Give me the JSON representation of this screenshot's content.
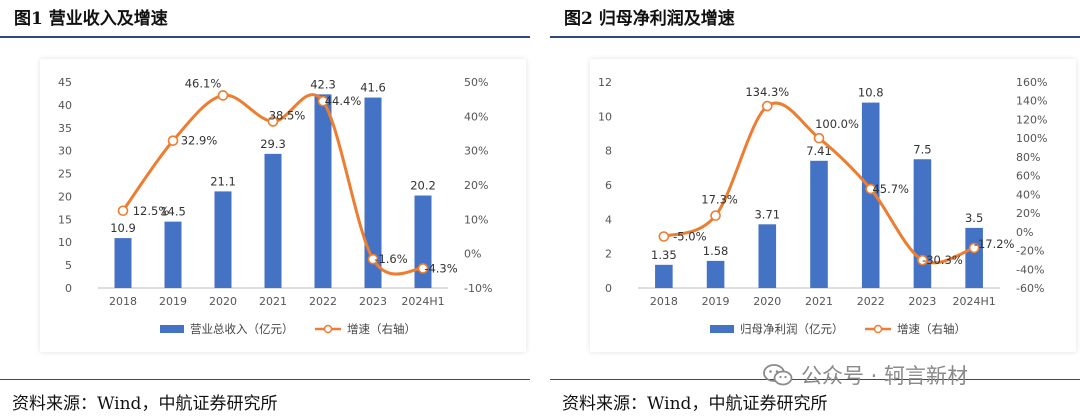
{
  "figures": [
    {
      "title": "图1 营业收入及增速",
      "source": "资料来源：Wind，中航证券研究所",
      "chart_data": {
        "type": "bar",
        "categories": [
          "2018",
          "2019",
          "2020",
          "2021",
          "2022",
          "2023",
          "2024H1"
        ],
        "series": [
          {
            "name": "营业总收入（亿元）",
            "type": "bar",
            "axis": "left",
            "values": [
              10.9,
              14.5,
              21.1,
              29.3,
              42.3,
              41.6,
              20.2
            ],
            "labels": [
              "10.9",
              "14.5",
              "21.1",
              "29.3",
              "42.3",
              "41.6",
              "20.2"
            ]
          },
          {
            "name": "增速（右轴）",
            "type": "line",
            "axis": "right",
            "values": [
              12.5,
              32.9,
              46.1,
              38.5,
              44.4,
              -1.6,
              -4.3
            ],
            "labels": [
              "12.5%",
              "32.9%",
              "46.1%",
              "38.5%",
              "44.4%",
              "-1.6%",
              "-4.3%"
            ]
          }
        ],
        "left_axis": {
          "min": 0,
          "max": 45,
          "step": 5,
          "ticks": [
            "0",
            "5",
            "10",
            "15",
            "20",
            "25",
            "30",
            "35",
            "40",
            "45"
          ]
        },
        "right_axis": {
          "min": -10,
          "max": 50,
          "step": 10,
          "ticks": [
            "-10%",
            "0%",
            "10%",
            "20%",
            "30%",
            "40%",
            "50%"
          ]
        },
        "legend": "bottom",
        "bar_color": "#4472c4",
        "line_color": "#ed7d31"
      }
    },
    {
      "title": "图2 归母净利润及增速",
      "source": "资料来源：Wind，中航证券研究所",
      "chart_data": {
        "type": "bar",
        "categories": [
          "2018",
          "2019",
          "2020",
          "2021",
          "2022",
          "2023",
          "2024H1"
        ],
        "series": [
          {
            "name": "归母净利润（亿元）",
            "type": "bar",
            "axis": "left",
            "values": [
              1.35,
              1.58,
              3.71,
              7.41,
              10.8,
              7.5,
              3.5
            ],
            "labels": [
              "1.35",
              "1.58",
              "3.71",
              "7.41",
              "10.8",
              "7.5",
              "3.5"
            ]
          },
          {
            "name": "增速（右轴）",
            "type": "line",
            "axis": "right",
            "values": [
              -5.0,
              17.3,
              134.3,
              100.0,
              45.7,
              -30.3,
              -17.2
            ],
            "labels": [
              "-5.0%",
              "17.3%",
              "134.3%",
              "100.0%",
              "45.7%",
              "-30.3%",
              "-17.2%"
            ]
          }
        ],
        "left_axis": {
          "min": 0,
          "max": 12,
          "step": 2,
          "ticks": [
            "0",
            "2",
            "4",
            "6",
            "8",
            "10",
            "12"
          ]
        },
        "right_axis": {
          "min": -60,
          "max": 160,
          "step": 20,
          "ticks": [
            "-60%",
            "-40%",
            "-20%",
            "0%",
            "20%",
            "40%",
            "60%",
            "80%",
            "100%",
            "120%",
            "140%",
            "160%"
          ]
        },
        "legend": "bottom",
        "bar_color": "#4472c4",
        "line_color": "#ed7d31"
      }
    }
  ],
  "watermark": {
    "text": "公众号 · 轲言新材",
    "icon": "wechat-icon"
  }
}
